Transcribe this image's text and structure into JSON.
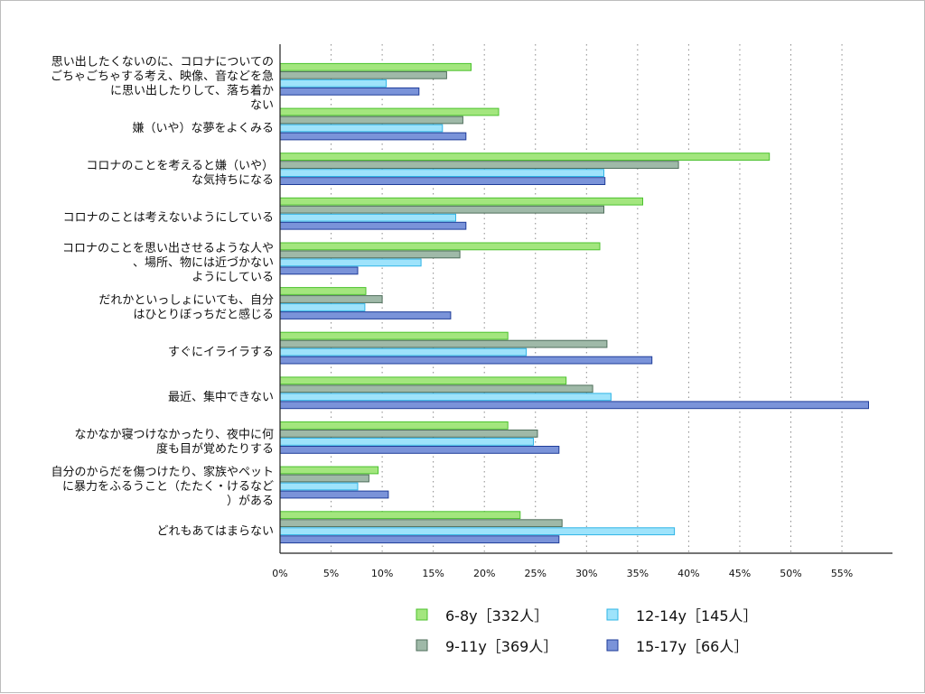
{
  "chart_data": {
    "type": "bar",
    "orientation": "horizontal",
    "categories": [
      [
        "思い出したくないのに、コロナについての",
        "ごちゃごちゃする考え、映像、音などを急",
        "に思い出したりして、落ち着か",
        "ない"
      ],
      [
        "嫌（いや）な夢をよくみる"
      ],
      [
        "コロナのことを考えると嫌（いや）",
        "な気持ちになる"
      ],
      [
        "コロナのことは考えないようにしている"
      ],
      [
        "コロナのことを思い出させるような人や",
        "、場所、物には近づかない",
        "ようにしている"
      ],
      [
        "だれかといっしょにいても、自分",
        "はひとりぼっちだと感じる"
      ],
      [
        "すぐにイライラする"
      ],
      [
        "最近、集中できない"
      ],
      [
        "なかなか寝つけなかったり、夜中に何",
        "度も目が覚めたりする"
      ],
      [
        "自分のからだを傷つけたり、家族やペット",
        "に暴力をふるうこと（たたく・けるなど",
        "）がある"
      ],
      [
        "どれもあてはまらない"
      ]
    ],
    "series": [
      {
        "name": "6-8y［332人］",
        "color": "#a3e67e",
        "stroke": "#4cc22e",
        "values": [
          18.7,
          21.4,
          47.9,
          35.5,
          31.3,
          8.4,
          22.3,
          28.0,
          22.3,
          9.6,
          23.5
        ]
      },
      {
        "name": "9-11y［369人］",
        "color": "#9fb9a8",
        "stroke": "#4f6e5b",
        "values": [
          16.3,
          17.9,
          39.0,
          31.7,
          17.6,
          10.0,
          32.0,
          30.6,
          25.2,
          8.7,
          27.6
        ]
      },
      {
        "name": "12-14y［145人］",
        "color": "#9ee3fb",
        "stroke": "#2fb4e6",
        "values": [
          10.4,
          15.9,
          31.7,
          17.2,
          13.8,
          8.3,
          24.1,
          32.4,
          24.8,
          7.6,
          38.6
        ]
      },
      {
        "name": "15-17y［66人］",
        "color": "#7a93d9",
        "stroke": "#1f3d99",
        "values": [
          13.6,
          18.2,
          31.8,
          18.2,
          7.6,
          16.7,
          36.4,
          57.6,
          27.3,
          10.6,
          27.3
        ]
      }
    ],
    "xlim": [
      0,
      60
    ],
    "xticks": [
      0,
      5,
      10,
      15,
      20,
      25,
      30,
      35,
      40,
      45,
      50,
      55
    ],
    "tick_suffix": "%",
    "grid": "vertical-dotted",
    "legend_position": "bottom",
    "title": "",
    "xlabel": "",
    "ylabel": ""
  }
}
